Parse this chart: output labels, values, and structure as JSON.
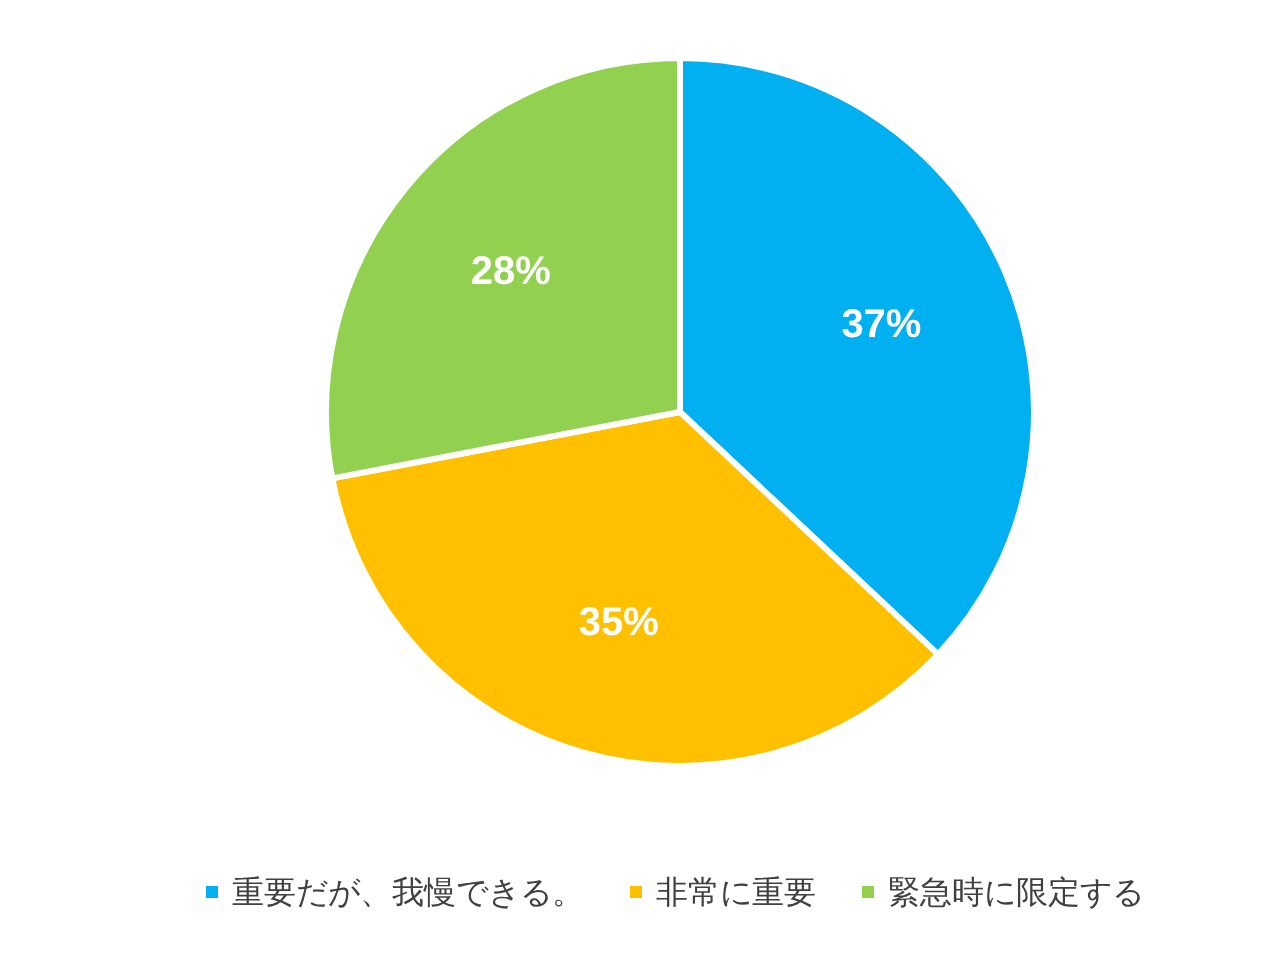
{
  "chart_data": {
    "type": "pie",
    "categories": [
      "重要だが、我慢できる。",
      "非常に重要",
      "緊急時に限定する"
    ],
    "values": [
      37,
      35,
      28
    ],
    "colors": [
      "#00b0f0",
      "#ffc000",
      "#92d050"
    ],
    "value_labels": [
      "37%",
      "35%",
      "28%"
    ],
    "legend": "bottom"
  }
}
